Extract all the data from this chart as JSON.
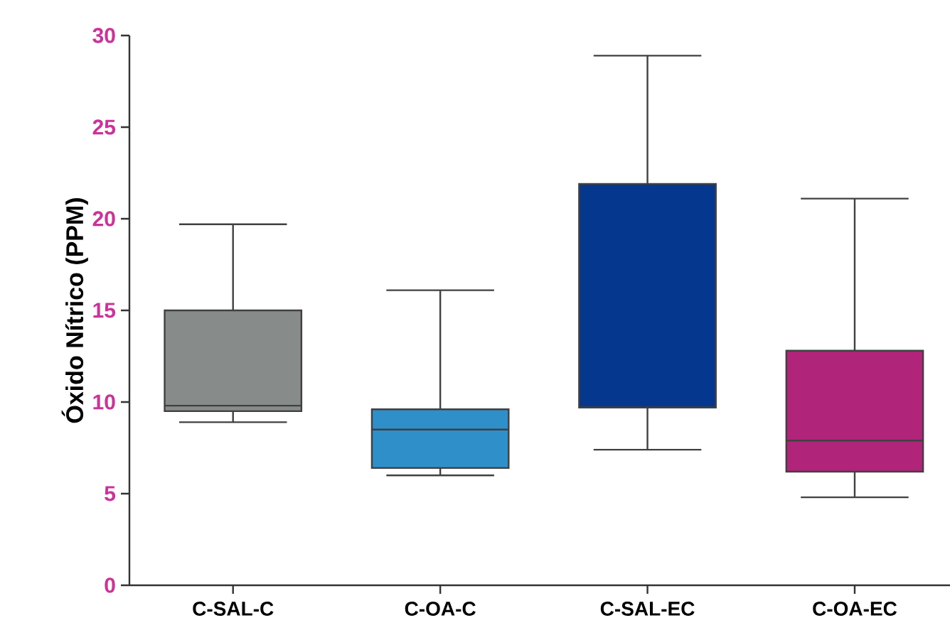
{
  "chart_data": {
    "type": "box",
    "ylabel": "Óxido Nítrico (PPM)",
    "categories": [
      "C-SAL-C",
      "C-OA-C",
      "C-SAL-EC",
      "C-OA-EC"
    ],
    "boxes": [
      {
        "low": 8.9,
        "q1": 9.5,
        "median": 9.8,
        "q3": 15.0,
        "high": 19.7
      },
      {
        "low": 6.0,
        "q1": 6.4,
        "median": 8.5,
        "q3": 9.6,
        "high": 16.1
      },
      {
        "low": 7.4,
        "q1": 9.7,
        "median": 9.7,
        "q3": 21.9,
        "high": 28.9
      },
      {
        "low": 4.8,
        "q1": 6.2,
        "median": 7.9,
        "q3": 12.8,
        "high": 21.1
      }
    ],
    "colors": [
      "#878c8a",
      "#2f8fc8",
      "#06378f",
      "#b0257a"
    ],
    "ylim": [
      0,
      30
    ],
    "yticks": [
      0,
      5,
      10,
      15,
      20,
      25,
      30
    ],
    "grid": false
  }
}
